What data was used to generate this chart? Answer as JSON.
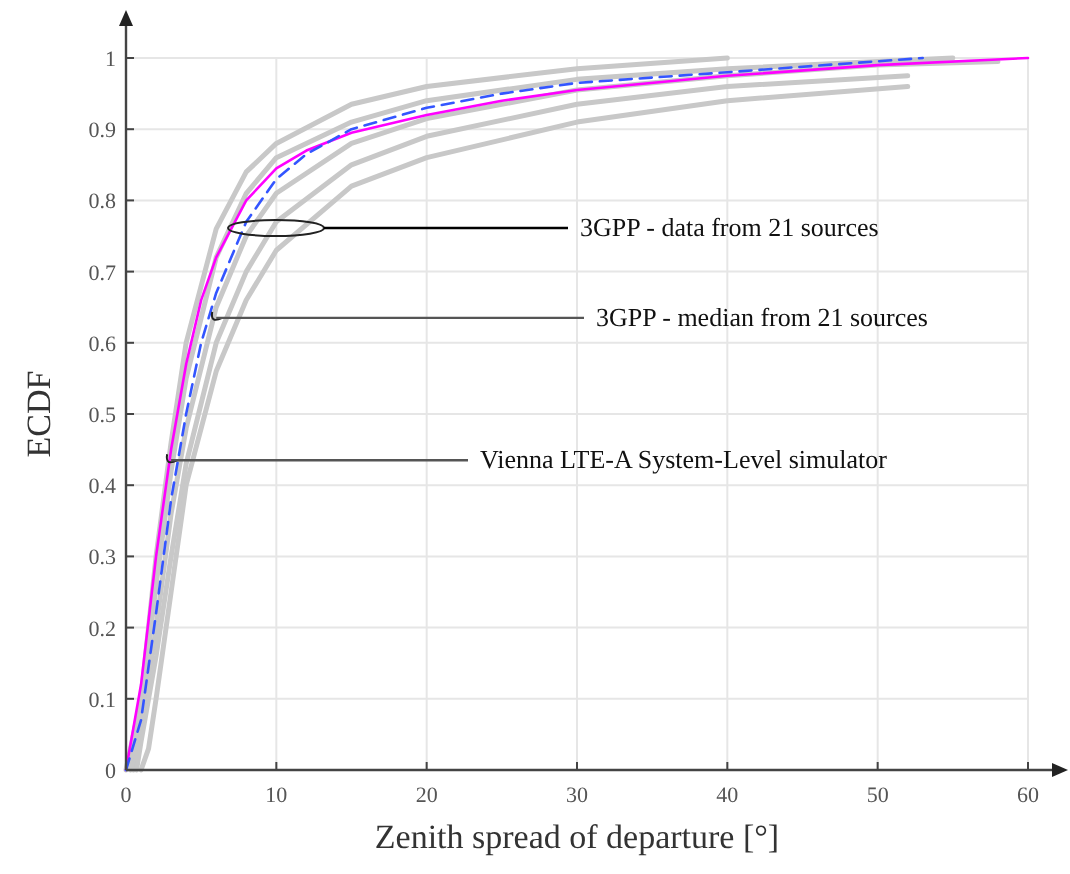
{
  "chart_data": {
    "type": "line",
    "xlabel": "Zenith spread of departure [°]",
    "ylabel": "ECDF",
    "xlim": [
      0,
      60
    ],
    "ylim": [
      0,
      1
    ],
    "xticks": [
      0,
      10,
      20,
      30,
      40,
      50,
      60
    ],
    "yticks": [
      0,
      0.1,
      0.2,
      0.3,
      0.4,
      0.5,
      0.6,
      0.7,
      0.8,
      0.9,
      1
    ],
    "grid": true,
    "series": [
      {
        "color": "#c8c8c8",
        "x": [
          0,
          1,
          2,
          3,
          4,
          6,
          8,
          10,
          15,
          20,
          30,
          40
        ],
        "values": [
          0,
          0.1,
          0.3,
          0.46,
          0.6,
          0.76,
          0.84,
          0.88,
          0.935,
          0.96,
          0.985,
          1
        ]
      },
      {
        "color": "#c8c8c8",
        "x": [
          0.3,
          1,
          2,
          3,
          4,
          6,
          8,
          10,
          15,
          20,
          30,
          40,
          50,
          55
        ],
        "values": [
          0,
          0.08,
          0.26,
          0.42,
          0.55,
          0.72,
          0.81,
          0.86,
          0.91,
          0.94,
          0.97,
          0.985,
          0.995,
          1
        ]
      },
      {
        "color": "#c8c8c8",
        "x": [
          0.5,
          1,
          2,
          3,
          4,
          6,
          8,
          10,
          15,
          20,
          30,
          40,
          50,
          58
        ],
        "values": [
          0,
          0.05,
          0.2,
          0.36,
          0.48,
          0.65,
          0.75,
          0.81,
          0.88,
          0.915,
          0.955,
          0.975,
          0.99,
          0.995
        ]
      },
      {
        "color": "#c8c8c8",
        "x": [
          0.7,
          1,
          2,
          3,
          4,
          6,
          8,
          10,
          15,
          20,
          30,
          40,
          52
        ],
        "values": [
          0,
          0.04,
          0.16,
          0.3,
          0.43,
          0.6,
          0.7,
          0.77,
          0.85,
          0.89,
          0.935,
          0.96,
          0.975
        ]
      },
      {
        "color": "#c8c8c8",
        "x": [
          1,
          1.5,
          2,
          3,
          4,
          6,
          8,
          10,
          15,
          20,
          30,
          40,
          52
        ],
        "values": [
          0,
          0.03,
          0.1,
          0.25,
          0.4,
          0.56,
          0.66,
          0.73,
          0.82,
          0.86,
          0.91,
          0.94,
          0.96
        ]
      },
      {
        "color": "#ff00ff",
        "x": [
          0,
          1,
          2,
          3,
          4,
          5,
          6,
          8,
          10,
          12,
          15,
          20,
          25,
          30,
          40,
          50,
          60
        ],
        "values": [
          0,
          0.12,
          0.3,
          0.45,
          0.57,
          0.66,
          0.72,
          0.8,
          0.845,
          0.87,
          0.895,
          0.92,
          0.94,
          0.955,
          0.975,
          0.99,
          1
        ]
      },
      {
        "color": "#3355ff",
        "line_style": "dashed",
        "x": [
          0,
          1,
          2,
          3,
          4,
          5,
          6,
          8,
          10,
          12,
          15,
          20,
          25,
          30,
          40,
          53
        ],
        "values": [
          0,
          0.07,
          0.22,
          0.38,
          0.5,
          0.6,
          0.67,
          0.77,
          0.83,
          0.865,
          0.9,
          0.93,
          0.95,
          0.965,
          0.98,
          1
        ]
      }
    ],
    "annotations": [
      "3GPP - data from 21 sources",
      {
        "text": "3GPP - median from 21 sources",
        "x": 6,
        "y": 0.635
      },
      {
        "text": "Vienna LTE-A System-Level simulator",
        "x": 3,
        "y": 0.435
      }
    ]
  }
}
